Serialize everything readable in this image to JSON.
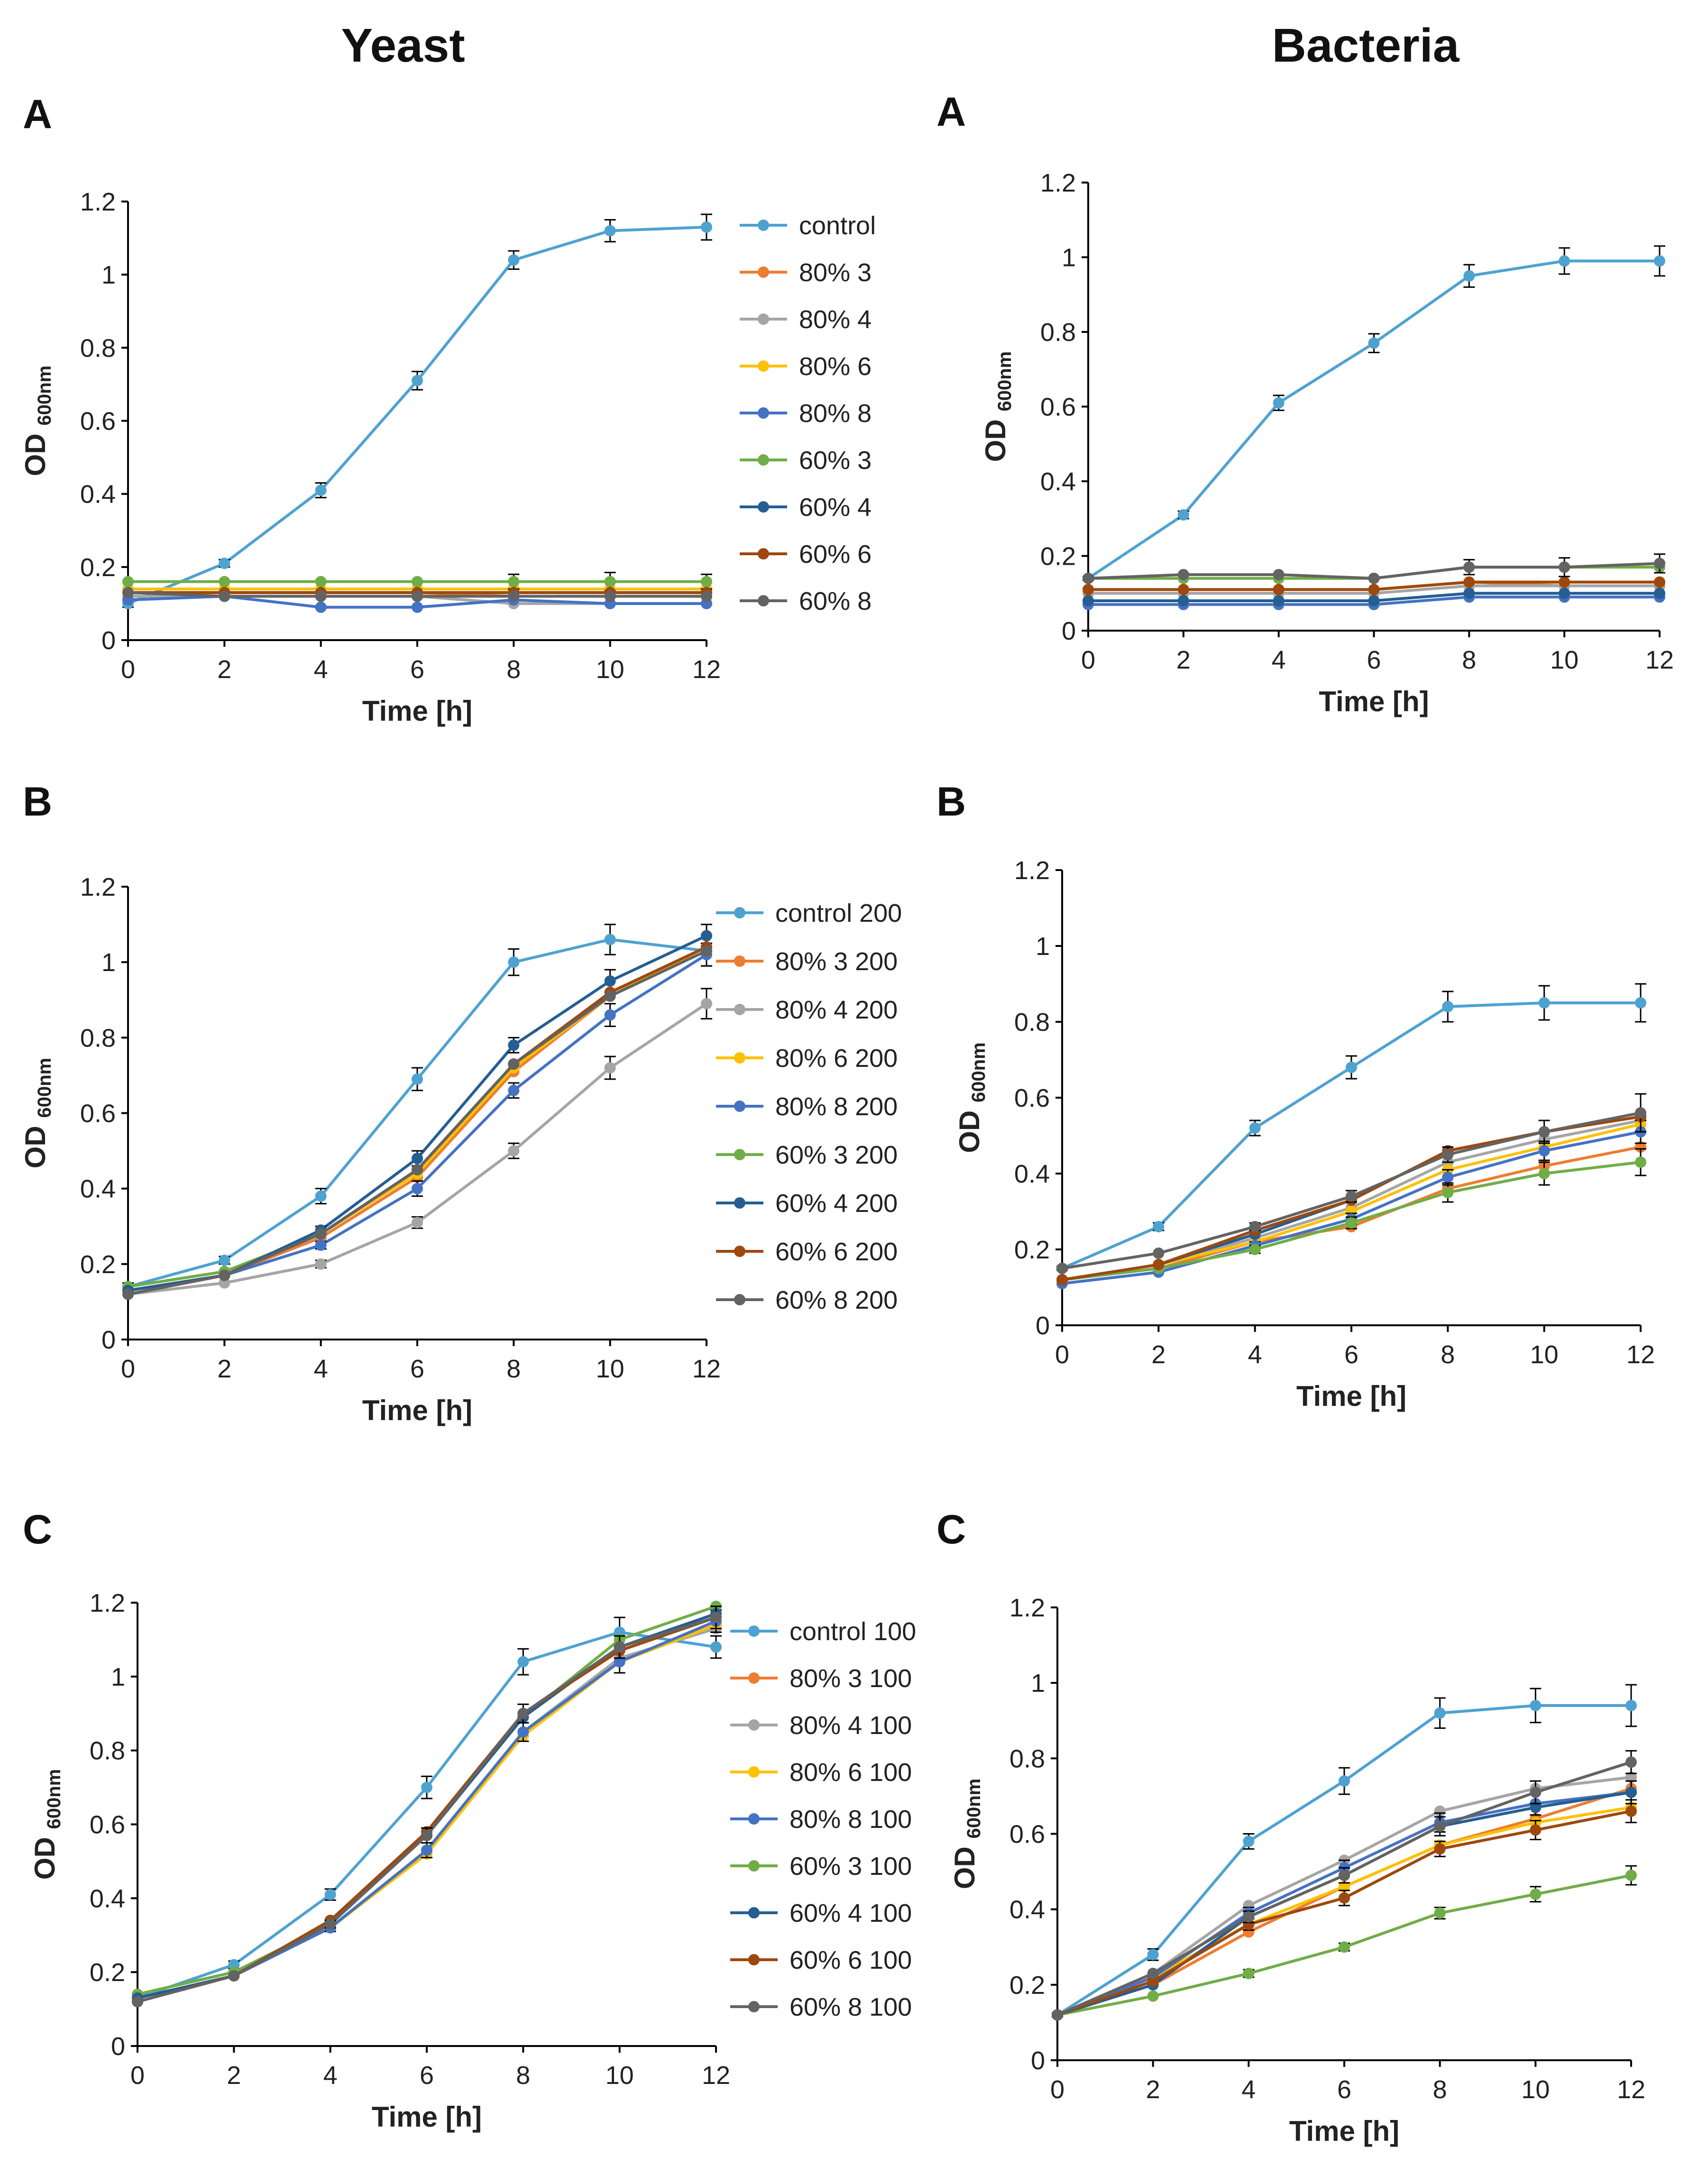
{
  "headers": {
    "yeast": "Yeast",
    "bacteria": "Bacteria"
  },
  "y_axis_label": "OD",
  "y_axis_sub": "600nm",
  "x_axis_label": "Time [h]",
  "chart_data": [
    {
      "id": "yeastA",
      "panel": "A",
      "type": "line",
      "x": [
        0,
        2,
        4,
        6,
        8,
        10,
        12
      ],
      "xlim": [
        0,
        12
      ],
      "xticks": [
        "0",
        "2",
        "4",
        "6",
        "8",
        "10",
        "12"
      ],
      "ylim": [
        0,
        1.2
      ],
      "yticks": [
        "0",
        "0.2",
        "0.4",
        "0.6",
        "0.8",
        "1",
        "1.2"
      ],
      "xlabel": "Time [h]",
      "ylabel": "OD 600nm",
      "legend": "right",
      "series": [
        {
          "name": "control",
          "color": "#4ea2d0",
          "values": [
            0.1,
            0.21,
            0.41,
            0.71,
            1.04,
            1.12,
            1.13
          ],
          "err": [
            0.01,
            0.01,
            0.02,
            0.025,
            0.025,
            0.03,
            0.035
          ]
        },
        {
          "name": "80% 3",
          "color": "#ed7d31",
          "values": [
            0.13,
            0.13,
            0.13,
            0.13,
            0.12,
            0.12,
            0.12
          ]
        },
        {
          "name": "80% 4",
          "color": "#a5a5a5",
          "values": [
            0.12,
            0.12,
            0.12,
            0.12,
            0.1,
            0.1,
            0.1
          ]
        },
        {
          "name": "80% 6",
          "color": "#ffc000",
          "values": [
            0.14,
            0.14,
            0.14,
            0.14,
            0.14,
            0.14,
            0.14
          ]
        },
        {
          "name": "80% 8",
          "color": "#4472c4",
          "values": [
            0.11,
            0.12,
            0.09,
            0.09,
            0.11,
            0.1,
            0.1
          ]
        },
        {
          "name": "60% 3",
          "color": "#70ad47",
          "values": [
            0.16,
            0.16,
            0.16,
            0.16,
            0.16,
            0.16,
            0.16
          ],
          "err": [
            0,
            0,
            0,
            0,
            0.02,
            0.025,
            0.02
          ]
        },
        {
          "name": "60% 4",
          "color": "#255e91",
          "values": [
            0.13,
            0.13,
            0.13,
            0.13,
            0.13,
            0.13,
            0.13
          ]
        },
        {
          "name": "60% 6",
          "color": "#9e480e",
          "values": [
            0.13,
            0.13,
            0.13,
            0.13,
            0.13,
            0.13,
            0.13
          ]
        },
        {
          "name": "60% 8",
          "color": "#636363",
          "values": [
            0.13,
            0.12,
            0.12,
            0.12,
            0.12,
            0.12,
            0.12
          ]
        }
      ]
    },
    {
      "id": "bactA",
      "panel": "A",
      "type": "line",
      "x": [
        0,
        2,
        4,
        6,
        8,
        10,
        12
      ],
      "xlim": [
        0,
        12
      ],
      "xticks": [
        "0",
        "2",
        "4",
        "6",
        "8",
        "10",
        "12"
      ],
      "ylim": [
        0,
        1.2
      ],
      "yticks": [
        "0",
        "0.2",
        "0.4",
        "0.6",
        "0.8",
        "1",
        "1.2"
      ],
      "xlabel": "Time [h]",
      "ylabel": "OD 600nm",
      "legend": "none",
      "series": [
        {
          "name": "control",
          "color": "#4ea2d0",
          "values": [
            0.14,
            0.31,
            0.61,
            0.77,
            0.95,
            0.99,
            0.99
          ],
          "err": [
            0.005,
            0.01,
            0.02,
            0.025,
            0.03,
            0.035,
            0.04
          ]
        },
        {
          "name": "80% 3",
          "color": "#ed7d31",
          "values": [
            0.11,
            0.11,
            0.11,
            0.11,
            0.13,
            0.12,
            0.12
          ]
        },
        {
          "name": "80% 4",
          "color": "#a5a5a5",
          "values": [
            0.1,
            0.1,
            0.1,
            0.1,
            0.12,
            0.12,
            0.12
          ]
        },
        {
          "name": "80% 6",
          "color": "#ffc000",
          "values": [
            0.11,
            0.11,
            0.11,
            0.11,
            0.13,
            0.13,
            0.13
          ]
        },
        {
          "name": "80% 8",
          "color": "#4472c4",
          "values": [
            0.07,
            0.07,
            0.07,
            0.07,
            0.09,
            0.09,
            0.09
          ]
        },
        {
          "name": "60% 3",
          "color": "#70ad47",
          "values": [
            0.14,
            0.14,
            0.14,
            0.14,
            0.17,
            0.17,
            0.17
          ]
        },
        {
          "name": "60% 4",
          "color": "#255e91",
          "values": [
            0.08,
            0.08,
            0.08,
            0.08,
            0.1,
            0.1,
            0.1
          ]
        },
        {
          "name": "60% 6",
          "color": "#9e480e",
          "values": [
            0.11,
            0.11,
            0.11,
            0.11,
            0.13,
            0.13,
            0.13
          ]
        },
        {
          "name": "60% 8",
          "color": "#636363",
          "values": [
            0.14,
            0.15,
            0.15,
            0.14,
            0.17,
            0.17,
            0.18
          ],
          "err": [
            0,
            0,
            0,
            0,
            0.02,
            0.025,
            0.025
          ]
        }
      ]
    },
    {
      "id": "yeastB",
      "panel": "B",
      "type": "line",
      "x": [
        0,
        2,
        4,
        6,
        8,
        10,
        12
      ],
      "xlim": [
        0,
        12
      ],
      "xticks": [
        "0",
        "2",
        "4",
        "6",
        "8",
        "10",
        "12"
      ],
      "ylim": [
        0,
        1.2
      ],
      "yticks": [
        "0",
        "0.2",
        "0.4",
        "0.6",
        "0.8",
        "1",
        "1.2"
      ],
      "xlabel": "Time [h]",
      "ylabel": "OD 600nm",
      "legend": "right",
      "series": [
        {
          "name": "control 200",
          "color": "#4ea2d0",
          "values": [
            0.14,
            0.21,
            0.38,
            0.69,
            1.0,
            1.06,
            1.03
          ],
          "err": [
            0.01,
            0.01,
            0.02,
            0.03,
            0.035,
            0.04,
            0.04
          ]
        },
        {
          "name": "80% 3 200",
          "color": "#ed7d31",
          "values": [
            0.13,
            0.17,
            0.27,
            0.43,
            0.71,
            0.91,
            1.04
          ]
        },
        {
          "name": "80% 4 200",
          "color": "#a5a5a5",
          "values": [
            0.12,
            0.15,
            0.2,
            0.31,
            0.5,
            0.72,
            0.89
          ],
          "err": [
            0,
            0,
            0.01,
            0.015,
            0.02,
            0.03,
            0.04
          ]
        },
        {
          "name": "80% 6 200",
          "color": "#ffc000",
          "values": [
            0.13,
            0.17,
            0.28,
            0.44,
            0.72,
            0.91,
            1.04
          ]
        },
        {
          "name": "80% 8 200",
          "color": "#4472c4",
          "values": [
            0.13,
            0.17,
            0.25,
            0.4,
            0.66,
            0.86,
            1.02
          ],
          "err": [
            0,
            0,
            0.01,
            0.02,
            0.02,
            0.03,
            0.03
          ]
        },
        {
          "name": "60% 3 200",
          "color": "#70ad47",
          "values": [
            0.14,
            0.18,
            0.28,
            0.45,
            0.73,
            0.92,
            1.04
          ]
        },
        {
          "name": "60% 4 200",
          "color": "#255e91",
          "values": [
            0.13,
            0.17,
            0.29,
            0.48,
            0.78,
            0.95,
            1.07
          ],
          "err": [
            0,
            0,
            0.01,
            0.02,
            0.02,
            0.03,
            0.03
          ]
        },
        {
          "name": "60% 6 200",
          "color": "#9e480e",
          "values": [
            0.12,
            0.17,
            0.28,
            0.45,
            0.73,
            0.92,
            1.04
          ]
        },
        {
          "name": "60% 8 200",
          "color": "#636363",
          "values": [
            0.12,
            0.17,
            0.28,
            0.45,
            0.73,
            0.91,
            1.03
          ]
        }
      ]
    },
    {
      "id": "bactB",
      "panel": "B",
      "type": "line",
      "x": [
        0,
        2,
        4,
        6,
        8,
        10,
        12
      ],
      "xlim": [
        0,
        12
      ],
      "xticks": [
        "0",
        "2",
        "4",
        "6",
        "8",
        "10",
        "12"
      ],
      "ylim": [
        0,
        1.2
      ],
      "yticks": [
        "0",
        "0.2",
        "0.4",
        "0.6",
        "0.8",
        "1",
        "1.2"
      ],
      "xlabel": "Time [h]",
      "ylabel": "OD 600nm",
      "legend": "none",
      "series": [
        {
          "name": "control 200",
          "color": "#4ea2d0",
          "values": [
            0.15,
            0.26,
            0.52,
            0.68,
            0.84,
            0.85,
            0.85
          ],
          "err": [
            0.005,
            0.01,
            0.02,
            0.03,
            0.04,
            0.045,
            0.05
          ]
        },
        {
          "name": "80% 3 200",
          "color": "#ed7d31",
          "values": [
            0.12,
            0.15,
            0.22,
            0.26,
            0.36,
            0.42,
            0.47
          ]
        },
        {
          "name": "80% 4 200",
          "color": "#a5a5a5",
          "values": [
            0.12,
            0.16,
            0.23,
            0.31,
            0.43,
            0.49,
            0.54
          ]
        },
        {
          "name": "80% 6 200",
          "color": "#ffc000",
          "values": [
            0.12,
            0.16,
            0.22,
            0.3,
            0.41,
            0.47,
            0.53
          ]
        },
        {
          "name": "80% 8 200",
          "color": "#4472c4",
          "values": [
            0.11,
            0.14,
            0.21,
            0.28,
            0.39,
            0.46,
            0.51
          ],
          "err": [
            0,
            0,
            0.01,
            0.015,
            0.02,
            0.025,
            0.03
          ]
        },
        {
          "name": "60% 3 200",
          "color": "#70ad47",
          "values": [
            0.12,
            0.15,
            0.2,
            0.27,
            0.35,
            0.4,
            0.43
          ],
          "err": [
            0,
            0,
            0.01,
            0.015,
            0.025,
            0.03,
            0.035
          ]
        },
        {
          "name": "60% 4 200",
          "color": "#255e91",
          "values": [
            0.12,
            0.16,
            0.24,
            0.33,
            0.46,
            0.51,
            0.55
          ]
        },
        {
          "name": "60% 6 200",
          "color": "#9e480e",
          "values": [
            0.12,
            0.16,
            0.25,
            0.33,
            0.46,
            0.51,
            0.55
          ]
        },
        {
          "name": "60% 8 200",
          "color": "#636363",
          "values": [
            0.15,
            0.19,
            0.26,
            0.34,
            0.45,
            0.51,
            0.56
          ],
          "err": [
            0,
            0,
            0.01,
            0.015,
            0.02,
            0.03,
            0.05
          ]
        }
      ]
    },
    {
      "id": "yeastC",
      "panel": "C",
      "type": "line",
      "x": [
        0,
        2,
        4,
        6,
        8,
        10,
        12
      ],
      "xlim": [
        0,
        12
      ],
      "xticks": [
        "0",
        "2",
        "4",
        "6",
        "8",
        "10",
        "12"
      ],
      "ylim": [
        0,
        1.2
      ],
      "yticks": [
        "0",
        "0.2",
        "0.4",
        "0.6",
        "0.8",
        "1",
        "1.2"
      ],
      "xlabel": "Time [h]",
      "ylabel": "OD 600nm",
      "legend": "right",
      "series": [
        {
          "name": "control 100",
          "color": "#4ea2d0",
          "values": [
            0.13,
            0.22,
            0.41,
            0.7,
            1.04,
            1.12,
            1.08
          ],
          "err": [
            0.01,
            0.01,
            0.015,
            0.03,
            0.035,
            0.04,
            0.03
          ]
        },
        {
          "name": "80% 3 100",
          "color": "#ed7d31",
          "values": [
            0.13,
            0.19,
            0.32,
            0.53,
            0.84,
            1.04,
            1.14
          ]
        },
        {
          "name": "80% 4 100",
          "color": "#a5a5a5",
          "values": [
            0.13,
            0.19,
            0.32,
            0.53,
            0.85,
            1.05,
            1.13
          ]
        },
        {
          "name": "80% 6 100",
          "color": "#ffc000",
          "values": [
            0.13,
            0.19,
            0.32,
            0.52,
            0.84,
            1.04,
            1.14
          ]
        },
        {
          "name": "80% 8 100",
          "color": "#4472c4",
          "values": [
            0.13,
            0.19,
            0.32,
            0.53,
            0.85,
            1.04,
            1.15
          ],
          "err": [
            0,
            0,
            0.01,
            0.02,
            0.025,
            0.03,
            0.03
          ]
        },
        {
          "name": "60% 3 100",
          "color": "#70ad47",
          "values": [
            0.14,
            0.2,
            0.33,
            0.57,
            0.89,
            1.1,
            1.19
          ]
        },
        {
          "name": "60% 4 100",
          "color": "#255e91",
          "values": [
            0.13,
            0.19,
            0.34,
            0.57,
            0.89,
            1.08,
            1.17
          ]
        },
        {
          "name": "60% 6 100",
          "color": "#9e480e",
          "values": [
            0.12,
            0.19,
            0.34,
            0.58,
            0.9,
            1.07,
            1.16
          ]
        },
        {
          "name": "60% 8 100",
          "color": "#636363",
          "values": [
            0.12,
            0.19,
            0.33,
            0.57,
            0.9,
            1.08,
            1.16
          ],
          "err": [
            0,
            0,
            0.01,
            0.02,
            0.025,
            0.03,
            0.03
          ]
        }
      ]
    },
    {
      "id": "bactC",
      "panel": "C",
      "type": "line",
      "x": [
        0,
        2,
        4,
        6,
        8,
        10,
        12
      ],
      "xlim": [
        0,
        12
      ],
      "xticks": [
        "0",
        "2",
        "4",
        "6",
        "8",
        "10",
        "12"
      ],
      "ylim": [
        0,
        1.2
      ],
      "yticks": [
        "0",
        "0.2",
        "0.4",
        "0.6",
        "0.8",
        "1",
        "1.2"
      ],
      "xlabel": "Time [h]",
      "ylabel": "OD 600nm",
      "legend": "none",
      "series": [
        {
          "name": "control 100",
          "color": "#4ea2d0",
          "values": [
            0.12,
            0.28,
            0.58,
            0.74,
            0.92,
            0.94,
            0.94
          ],
          "err": [
            0.005,
            0.015,
            0.02,
            0.035,
            0.04,
            0.045,
            0.055
          ]
        },
        {
          "name": "80% 3 100",
          "color": "#ed7d31",
          "values": [
            0.12,
            0.2,
            0.34,
            0.46,
            0.57,
            0.64,
            0.72
          ]
        },
        {
          "name": "80% 4 100",
          "color": "#a5a5a5",
          "values": [
            0.12,
            0.23,
            0.41,
            0.53,
            0.66,
            0.72,
            0.75
          ]
        },
        {
          "name": "80% 6 100",
          "color": "#ffc000",
          "values": [
            0.12,
            0.22,
            0.36,
            0.46,
            0.57,
            0.63,
            0.67
          ]
        },
        {
          "name": "80% 8 100",
          "color": "#4472c4",
          "values": [
            0.12,
            0.22,
            0.39,
            0.51,
            0.63,
            0.68,
            0.71
          ],
          "err": [
            0,
            0,
            0.015,
            0.02,
            0.025,
            0.03,
            0.03
          ]
        },
        {
          "name": "60% 3 100",
          "color": "#70ad47",
          "values": [
            0.12,
            0.17,
            0.23,
            0.3,
            0.39,
            0.44,
            0.49
          ],
          "err": [
            0,
            0,
            0.01,
            0.01,
            0.015,
            0.02,
            0.025
          ]
        },
        {
          "name": "60% 4 100",
          "color": "#255e91",
          "values": [
            0.12,
            0.2,
            0.38,
            0.49,
            0.62,
            0.67,
            0.71
          ]
        },
        {
          "name": "60% 6 100",
          "color": "#9e480e",
          "values": [
            0.12,
            0.21,
            0.36,
            0.43,
            0.56,
            0.61,
            0.66
          ],
          "err": [
            0,
            0,
            0.015,
            0.02,
            0.02,
            0.025,
            0.03
          ]
        },
        {
          "name": "60% 8 100",
          "color": "#636363",
          "values": [
            0.12,
            0.23,
            0.38,
            0.49,
            0.62,
            0.71,
            0.79
          ],
          "err": [
            0,
            0,
            0.015,
            0.02,
            0.025,
            0.03,
            0.03
          ]
        }
      ]
    }
  ]
}
